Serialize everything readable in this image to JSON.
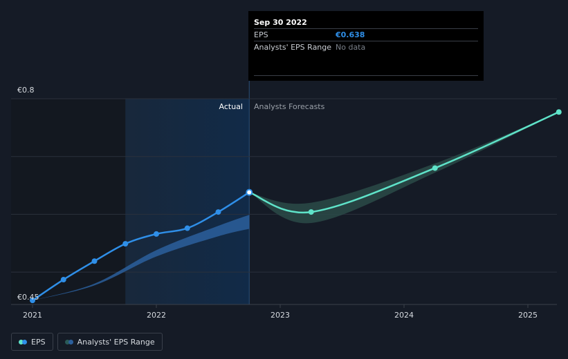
{
  "colors": {
    "background": "#151b26",
    "eps_actual": "#2f8fe8",
    "eps_forecast": "#5fe3c9",
    "range_actual": "#2b5f9c",
    "range_forecast": "#2a4a48",
    "past_band": "#1b2d44"
  },
  "tooltip": {
    "date": "Sep 30 2022",
    "eps_label": "EPS",
    "eps_value": "€0.638",
    "range_label": "Analysts' EPS Range",
    "range_value": "No data"
  },
  "labels": {
    "actual": "Actual",
    "forecast": "Analysts Forecasts"
  },
  "legend": {
    "eps": "EPS",
    "range": "Analysts' EPS Range"
  },
  "chart_data": {
    "type": "line",
    "ylim": [
      0.45,
      0.8
    ],
    "y_ticks": [
      "€0.45",
      "€0.8"
    ],
    "x_ticks": [
      {
        "label": "2021",
        "value": 2021.0
      },
      {
        "label": "2022",
        "value": 2022.0
      },
      {
        "label": "2023",
        "value": 2023.0
      },
      {
        "label": "2024",
        "value": 2024.0
      },
      {
        "label": "2025",
        "value": 2025.0
      }
    ],
    "series": [
      {
        "name": "EPS",
        "kind": "actual",
        "points": [
          [
            2021.0,
            0.451
          ],
          [
            2021.25,
            0.487
          ],
          [
            2021.5,
            0.519
          ],
          [
            2021.75,
            0.549
          ],
          [
            2022.0,
            0.566
          ],
          [
            2022.25,
            0.576
          ],
          [
            2022.5,
            0.604
          ],
          [
            2022.75,
            0.638
          ]
        ]
      },
      {
        "name": "EPS",
        "kind": "forecast",
        "points": [
          [
            2022.75,
            0.638
          ],
          [
            2023.25,
            0.604
          ],
          [
            2024.25,
            0.68
          ],
          [
            2025.25,
            0.777
          ]
        ]
      }
    ],
    "range": {
      "name": "Analysts' EPS Range",
      "actual_low": [
        [
          2021.0,
          0.451
        ],
        [
          2021.5,
          0.477
        ],
        [
          2022.0,
          0.527
        ],
        [
          2022.5,
          0.562
        ],
        [
          2022.75,
          0.575
        ]
      ],
      "actual_high": [
        [
          2021.0,
          0.451
        ],
        [
          2021.5,
          0.48
        ],
        [
          2022.0,
          0.538
        ],
        [
          2022.5,
          0.58
        ],
        [
          2022.75,
          0.599
        ]
      ],
      "forecast_low": [
        [
          2022.75,
          0.638
        ],
        [
          2023.25,
          0.585
        ],
        [
          2024.25,
          0.672
        ],
        [
          2025.25,
          0.777
        ]
      ],
      "forecast_high": [
        [
          2022.75,
          0.638
        ],
        [
          2023.25,
          0.62
        ],
        [
          2024.25,
          0.688
        ],
        [
          2025.25,
          0.777
        ]
      ]
    },
    "past_band_start": 2021.75,
    "now": 2022.75
  }
}
